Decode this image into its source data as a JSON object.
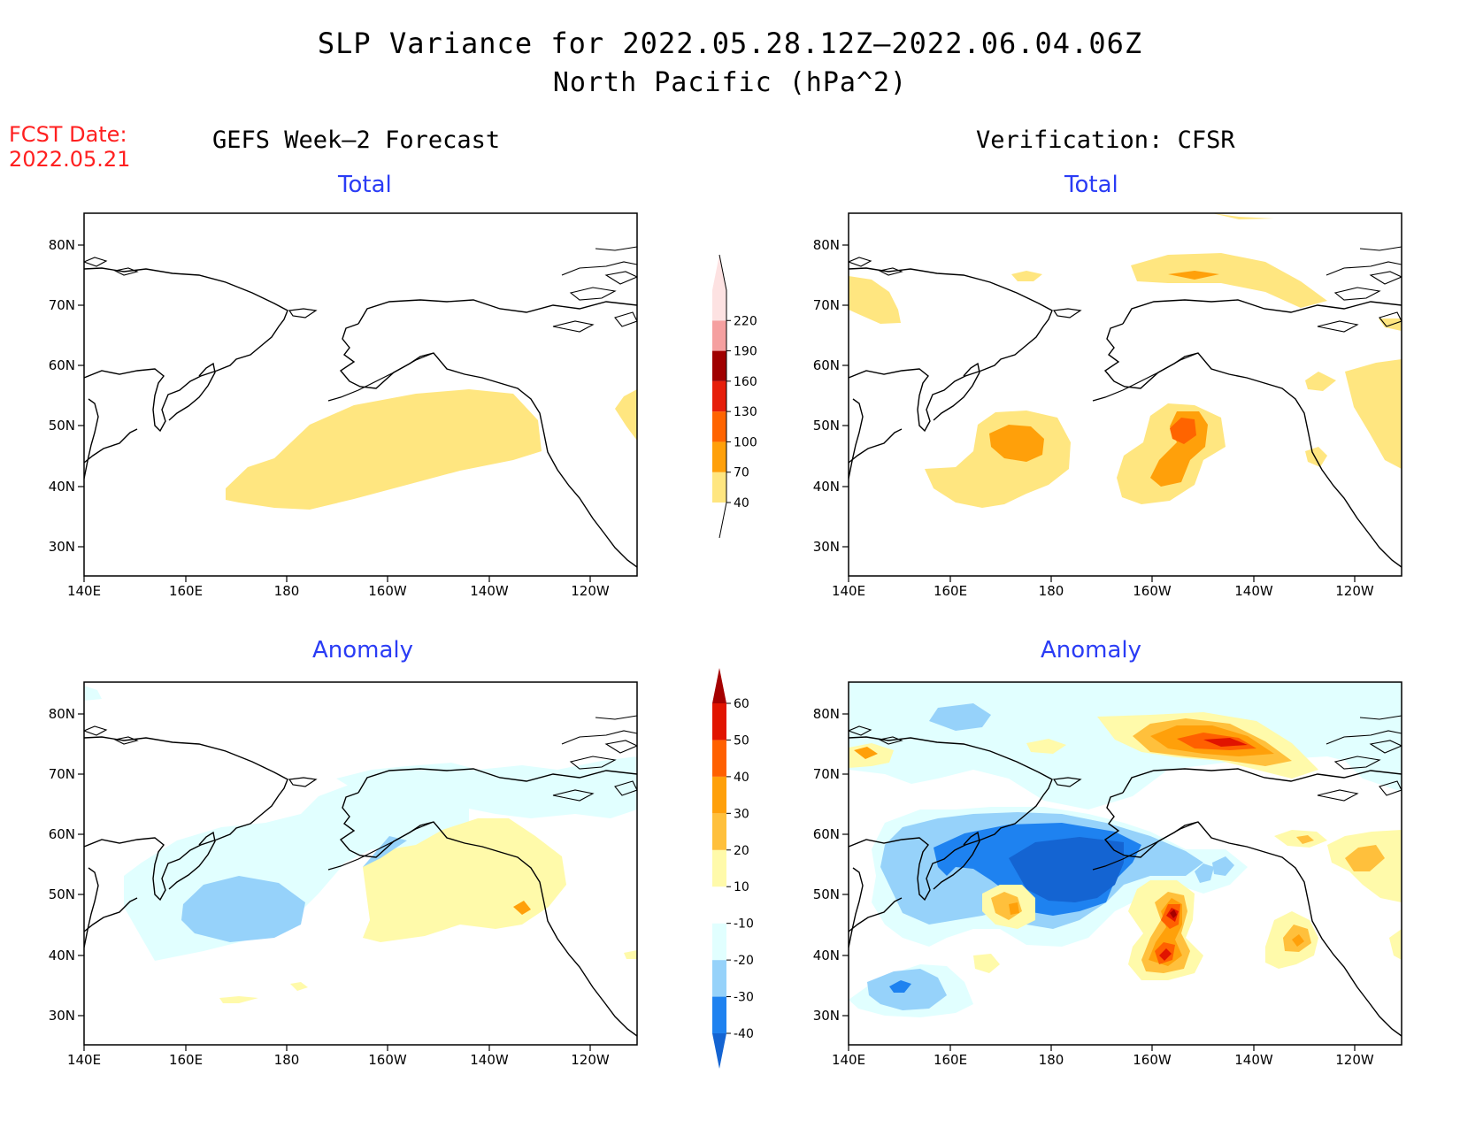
{
  "title": "SLP Variance for 2022.05.28.12Z—2022.06.04.06Z",
  "subtitle": "North Pacific (hPa^2)",
  "fcst_date_label": "FCST Date:",
  "fcst_date_value": "2022.05.21",
  "columns": {
    "left": "GEFS Week—2 Forecast",
    "right": "Verification: CFSR"
  },
  "panels": {
    "forecast_total": "Total",
    "verification_total": "Total",
    "forecast_anomaly": "Anomaly",
    "verification_anomaly": "Anomaly"
  },
  "lat_labels": [
    "80N",
    "70N",
    "60N",
    "50N",
    "40N",
    "30N"
  ],
  "lon_labels": [
    "140E",
    "160E",
    "180",
    "160W",
    "140W",
    "120W"
  ],
  "total_colorbar": {
    "levels": [
      "40",
      "70",
      "100",
      "130",
      "160",
      "190",
      "220"
    ],
    "colors": [
      "#ffe680",
      "#ffa00a",
      "#ff6400",
      "#e61e0a",
      "#a00000",
      "#f5a0a0",
      "#fde2e2"
    ]
  },
  "anomaly_colorbar": {
    "levels": [
      "-40",
      "-30",
      "-20",
      "-10",
      "10",
      "20",
      "30",
      "40",
      "50",
      "60"
    ],
    "colors": [
      "#1464d2",
      "#1e82f0",
      "#96d2fa",
      "#e1ffff",
      "#ffffff",
      "#fffaaa",
      "#ffc03c",
      "#ffa00a",
      "#ff6000",
      "#e11400",
      "#a50000"
    ]
  }
}
